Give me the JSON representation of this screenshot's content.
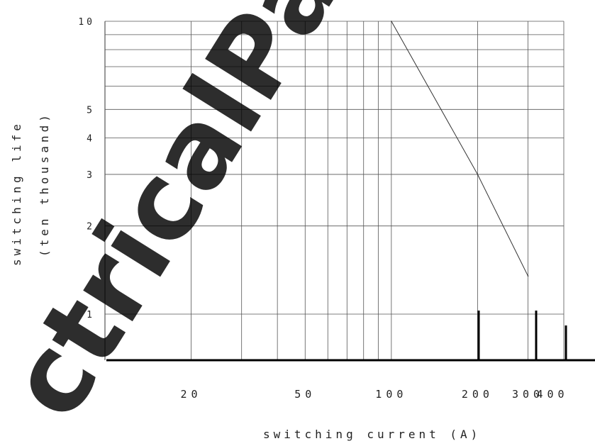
{
  "chart_data": {
    "type": "line",
    "xlabel": "switching current (A)",
    "ylabel": [
      "switching life",
      "(ten thousand)"
    ],
    "xscale": "log",
    "yscale": "log",
    "xlim": [
      10,
      400
    ],
    "ylim": [
      1,
      10
    ],
    "x_tick_labels": [
      "20",
      "50",
      "100",
      "200",
      "300",
      "400"
    ],
    "y_tick_labels": [
      "1",
      "2",
      "3",
      "4",
      "5",
      "10"
    ],
    "grid": true,
    "series": [
      {
        "x": [
          100,
          200,
          300
        ],
        "y": [
          10,
          3,
          1.35
        ]
      }
    ]
  },
  "watermark": "ctricalPartM"
}
